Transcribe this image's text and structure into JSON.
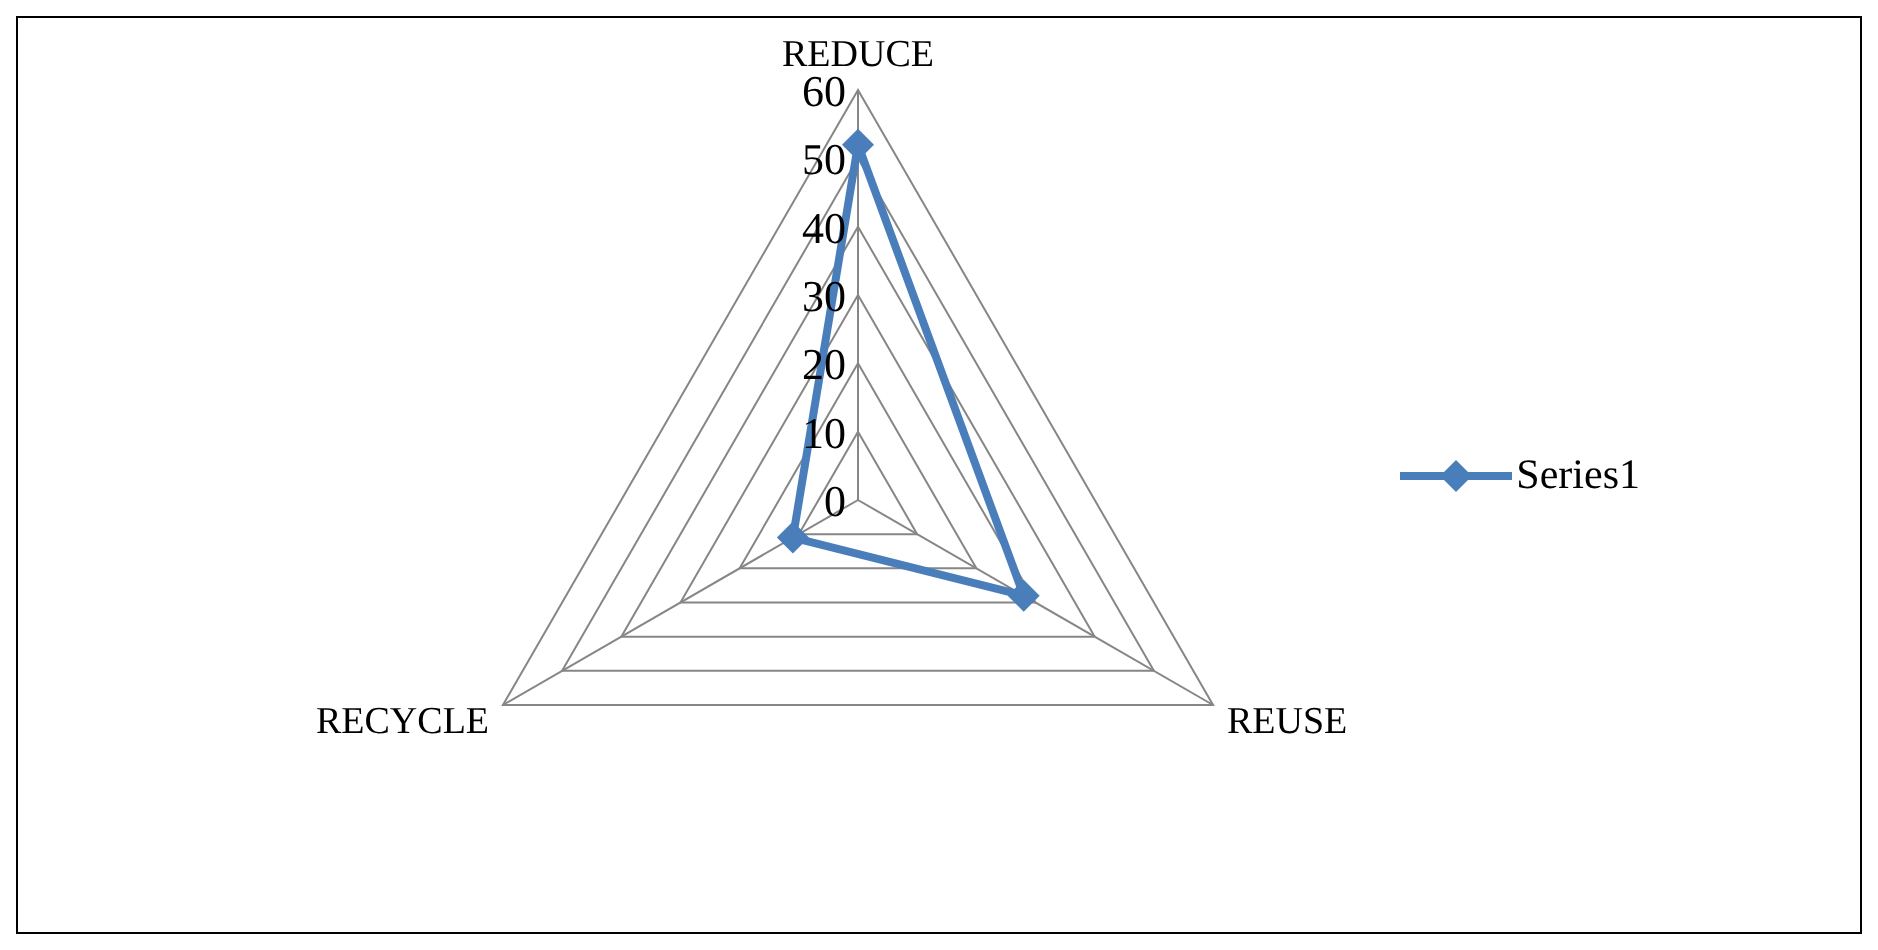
{
  "chart_data": {
    "type": "radar",
    "categories": [
      "REDUCE",
      "REUSE",
      "RECYCLE"
    ],
    "series": [
      {
        "name": "Series1",
        "color": "#4a7ebb",
        "values": [
          52,
          28,
          11
        ]
      }
    ],
    "ylim": [
      0,
      60
    ],
    "yticks": [
      0,
      10,
      20,
      30,
      40,
      50,
      60
    ],
    "grid": true,
    "legend": "right",
    "marker": "diamond"
  }
}
